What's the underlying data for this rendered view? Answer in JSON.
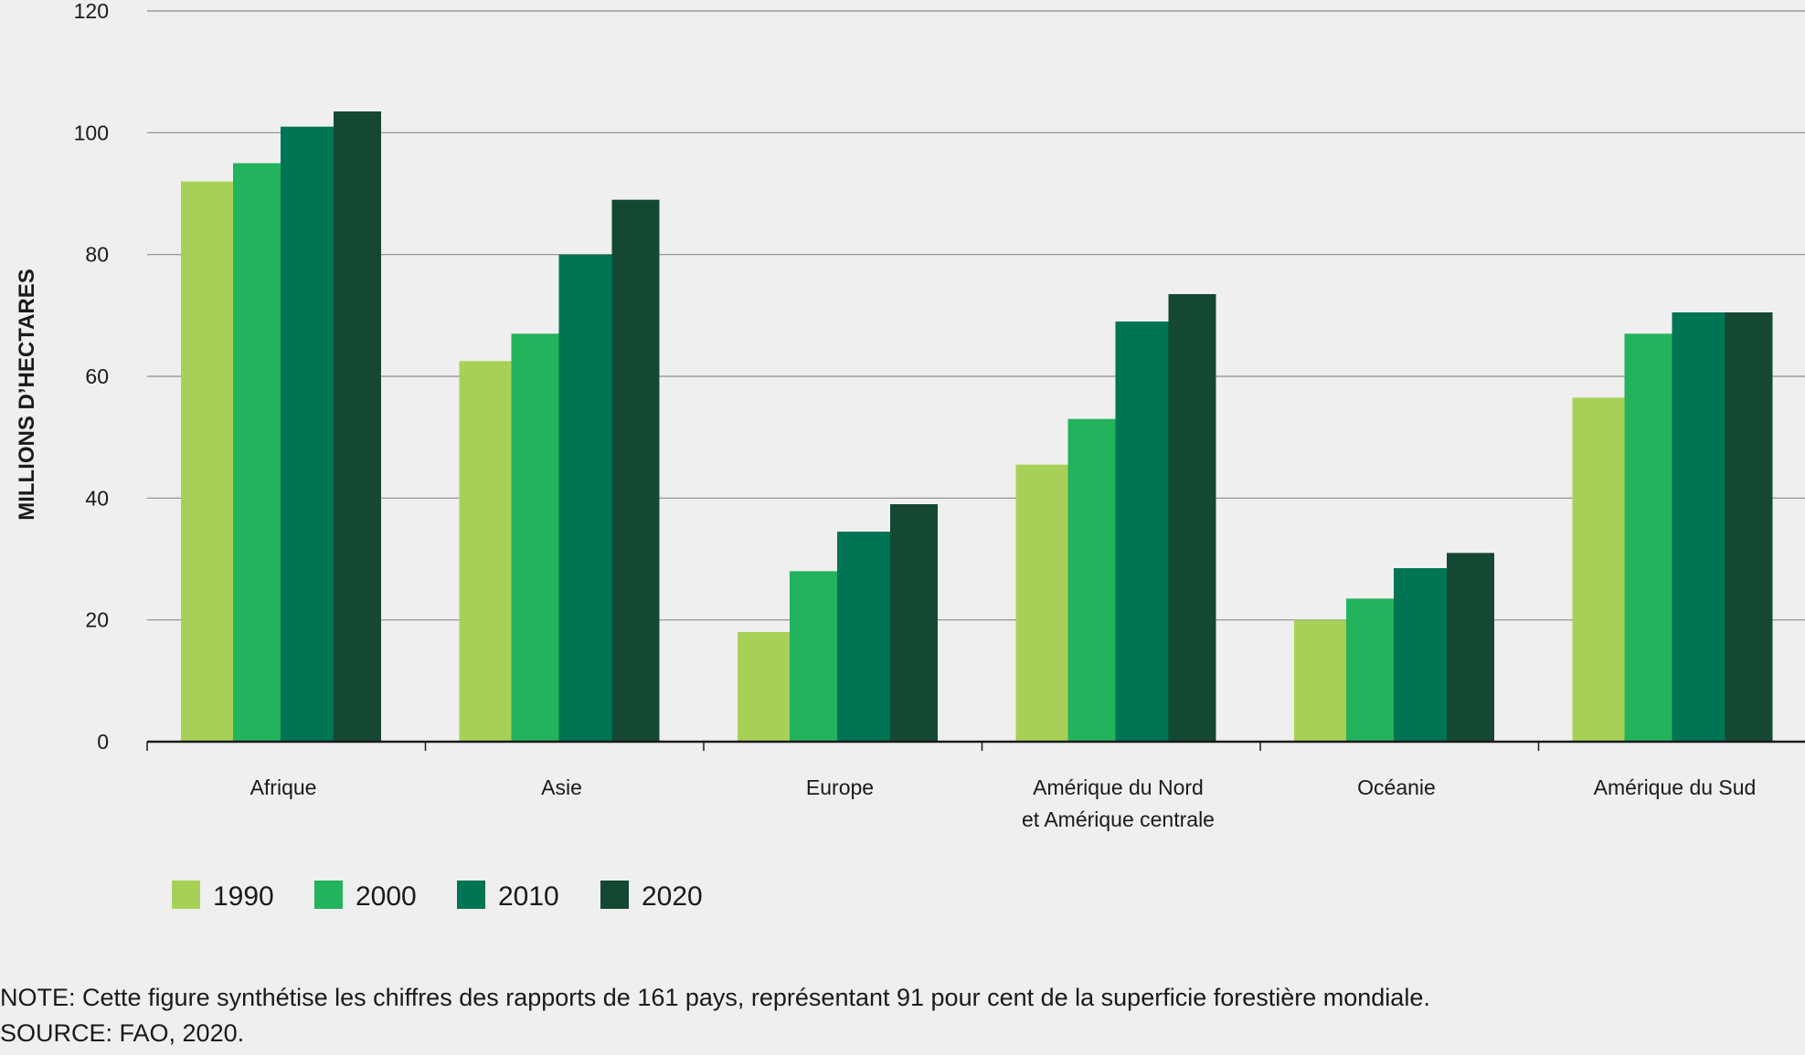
{
  "chart_data": {
    "type": "bar",
    "title": "",
    "xlabel": "",
    "ylabel": "MILLIONS D’HECTARES",
    "ylim": [
      0,
      120
    ],
    "yticks": [
      0,
      20,
      40,
      60,
      80,
      100,
      120
    ],
    "grid": true,
    "legend_position": "bottom-left",
    "categories": [
      [
        "Afrique"
      ],
      [
        "Asie"
      ],
      [
        "Europe"
      ],
      [
        "Amérique du Nord",
        "et Amérique centrale"
      ],
      [
        "Océanie"
      ],
      [
        "Amérique du Sud"
      ]
    ],
    "series": [
      {
        "name": "1990",
        "color": "#a7d156",
        "values": [
          92,
          62.5,
          18,
          45.5,
          20,
          56.5
        ]
      },
      {
        "name": "2000",
        "color": "#22b35c",
        "values": [
          95,
          67,
          28,
          53,
          23.5,
          67
        ]
      },
      {
        "name": "2010",
        "color": "#007553",
        "values": [
          101,
          80,
          34.5,
          69,
          28.5,
          70.5
        ]
      },
      {
        "name": "2020",
        "color": "#154832",
        "values": [
          103.5,
          89,
          39,
          73.5,
          31,
          70.5
        ]
      }
    ]
  },
  "footer": {
    "note": "NOTE: Cette figure synthétise les chiffres des rapports de 161 pays, représentant 91 pour cent de la superficie forestière mondiale.",
    "source": "SOURCE: FAO, 2020."
  }
}
